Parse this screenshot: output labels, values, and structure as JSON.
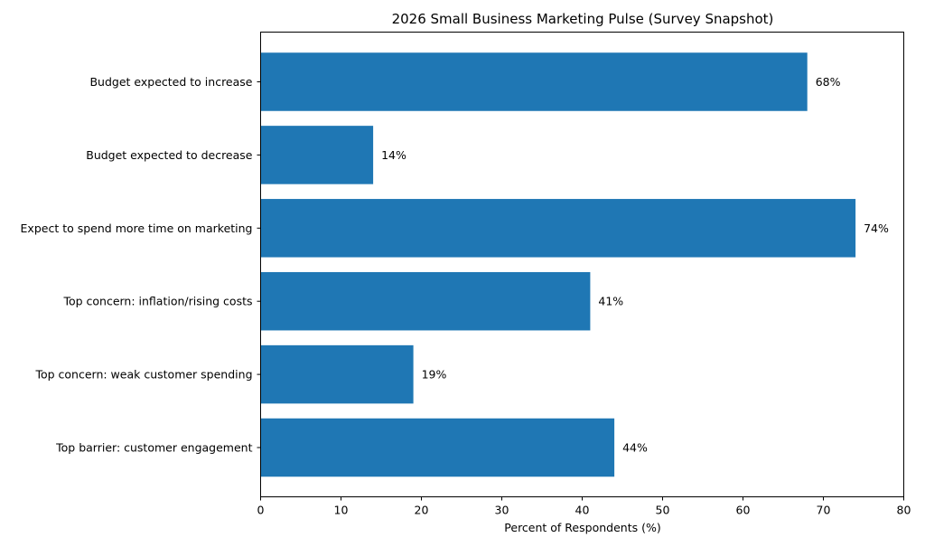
{
  "chart_data": {
    "type": "bar",
    "orientation": "horizontal",
    "title": "2026 Small Business Marketing Pulse (Survey Snapshot)",
    "xlabel": "Percent of Respondents (%)",
    "ylabel": "",
    "xlim": [
      0,
      80
    ],
    "xticks": [
      0,
      10,
      20,
      30,
      40,
      50,
      60,
      70,
      80
    ],
    "grid": false,
    "bar_color": "#1f77b4",
    "categories": [
      "Budget expected to increase",
      "Budget expected to decrease",
      "Expect to spend more time on marketing",
      "Top concern: inflation/rising costs",
      "Top concern: weak customer spending",
      "Top barrier: customer engagement"
    ],
    "values": [
      68,
      14,
      74,
      41,
      19,
      44
    ],
    "data_labels": [
      "68%",
      "14%",
      "74%",
      "41%",
      "19%",
      "44%"
    ]
  }
}
